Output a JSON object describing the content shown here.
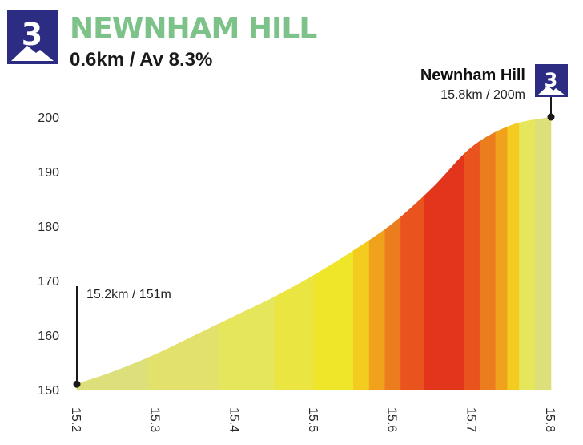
{
  "header": {
    "category": "3",
    "title": "NEWNHAM HILL",
    "subtitle": "0.6km / Av 8.3%"
  },
  "colors": {
    "badge": "#2c2d82",
    "title": "#7dc389",
    "gradient_scale": [
      "#dde07a",
      "#e6e65c",
      "#efe62a",
      "#f3cc1f",
      "#f0a21d",
      "#ec7d1f",
      "#e8531e",
      "#e3351b"
    ]
  },
  "chart_data": {
    "type": "area",
    "title": "",
    "xlabel": "",
    "ylabel": "",
    "x_unit": "km",
    "y_unit": "m",
    "xlim": [
      15.2,
      15.8
    ],
    "ylim": [
      150,
      200
    ],
    "xticks": [
      "15.2",
      "15.3",
      "15.4",
      "15.5",
      "15.6",
      "15.7",
      "15.8"
    ],
    "yticks": [
      "150",
      "160",
      "170",
      "180",
      "190",
      "200"
    ],
    "x": [
      15.2,
      15.25,
      15.3,
      15.35,
      15.4,
      15.45,
      15.5,
      15.55,
      15.6,
      15.65,
      15.7,
      15.75,
      15.8
    ],
    "y": [
      151,
      153.5,
      156.5,
      160,
      163.5,
      167,
      171,
      175.5,
      180.5,
      187,
      194.5,
      198.5,
      200
    ],
    "segments": [
      {
        "from": 15.2,
        "to": 15.29,
        "color": "#dde07a"
      },
      {
        "from": 15.29,
        "to": 15.38,
        "color": "#e2e16c"
      },
      {
        "from": 15.38,
        "to": 15.45,
        "color": "#e6e65c"
      },
      {
        "from": 15.45,
        "to": 15.5,
        "color": "#ebe542"
      },
      {
        "from": 15.5,
        "to": 15.55,
        "color": "#efe62a"
      },
      {
        "from": 15.55,
        "to": 15.57,
        "color": "#f3cc1f"
      },
      {
        "from": 15.57,
        "to": 15.59,
        "color": "#f0a21d"
      },
      {
        "from": 15.59,
        "to": 15.61,
        "color": "#ec7d1f"
      },
      {
        "from": 15.61,
        "to": 15.64,
        "color": "#e8531e"
      },
      {
        "from": 15.64,
        "to": 15.69,
        "color": "#e3351b"
      },
      {
        "from": 15.69,
        "to": 15.71,
        "color": "#e8531e"
      },
      {
        "from": 15.71,
        "to": 15.73,
        "color": "#ec7d1f"
      },
      {
        "from": 15.73,
        "to": 15.745,
        "color": "#f0a21d"
      },
      {
        "from": 15.745,
        "to": 15.76,
        "color": "#f3cc1f"
      },
      {
        "from": 15.76,
        "to": 15.78,
        "color": "#e6e65c"
      },
      {
        "from": 15.78,
        "to": 15.8,
        "color": "#dde07a"
      }
    ],
    "annotations": [
      {
        "id": "start",
        "label": "15.2km / 151m",
        "x": 15.2,
        "y": 151
      },
      {
        "id": "summit",
        "name": "Newnham Hill",
        "label": "15.8km / 200m",
        "x": 15.8,
        "y": 200,
        "category": "3"
      }
    ],
    "grid": false,
    "legend": "none"
  }
}
